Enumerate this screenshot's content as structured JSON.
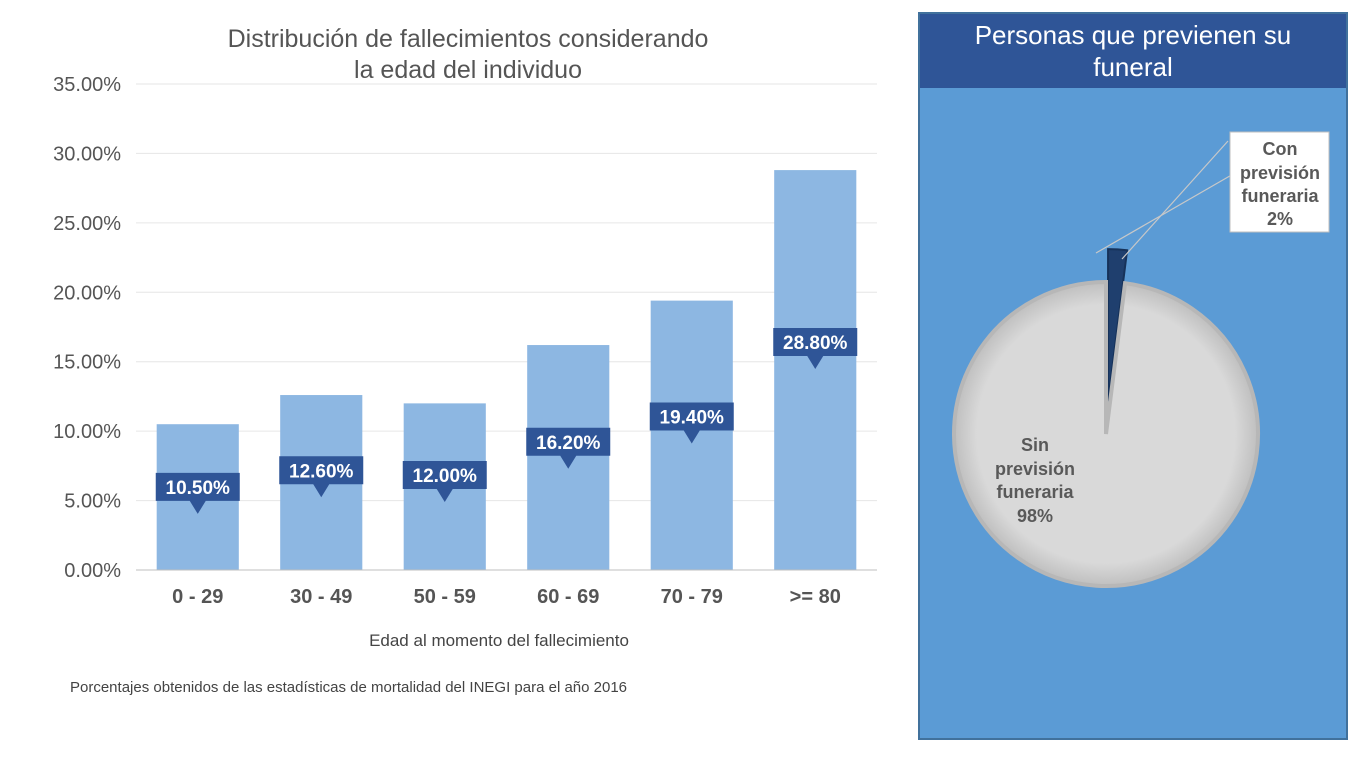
{
  "chart_data": [
    {
      "type": "bar",
      "title_lines": [
        "Distribución de fallecimientos considerando",
        "la edad del individuo"
      ],
      "categories": [
        "0 - 29",
        "30 - 49",
        "50 - 59",
        "60 - 69",
        "70 - 79",
        ">= 80"
      ],
      "values": [
        10.5,
        12.6,
        12.0,
        16.2,
        19.4,
        28.8
      ],
      "data_labels": [
        "10.50%",
        "12.60%",
        "12.00%",
        "16.20%",
        "19.40%",
        "28.80%"
      ],
      "y_ticks": [
        "0.00%",
        "5.00%",
        "10.00%",
        "15.00%",
        "20.00%",
        "25.00%",
        "30.00%",
        "35.00%"
      ],
      "ylim": [
        0,
        35
      ],
      "xlabel": "Edad al momento del fallecimiento",
      "ylabel": "",
      "grid": true,
      "note": "Porcentajes obtenidos de las estadísticas de mortalidad del INEGI para el año 2016",
      "colors": {
        "bar": "#8db7e2",
        "label_bg": "#2f5597",
        "grid": "#e6e6e6",
        "axis": "#bfbfbf"
      }
    },
    {
      "type": "pie",
      "title_lines": [
        "Personas que previenen su",
        "funeral"
      ],
      "slices": [
        {
          "name": "Con previsión funeraria",
          "value": 2,
          "label_lines": [
            "Con",
            "previsión",
            "funeraria",
            "2%"
          ],
          "color": "#1f3f6e"
        },
        {
          "name": "Sin previsión funeraria",
          "value": 98,
          "label_lines": [
            "Sin",
            "previsión",
            "funeraria",
            "98%"
          ],
          "color": "#d9d9d9"
        }
      ],
      "colors": {
        "panel_bg": "#5b9bd5",
        "header_bg": "#2f5597",
        "panel_border": "#41719c"
      }
    }
  ]
}
